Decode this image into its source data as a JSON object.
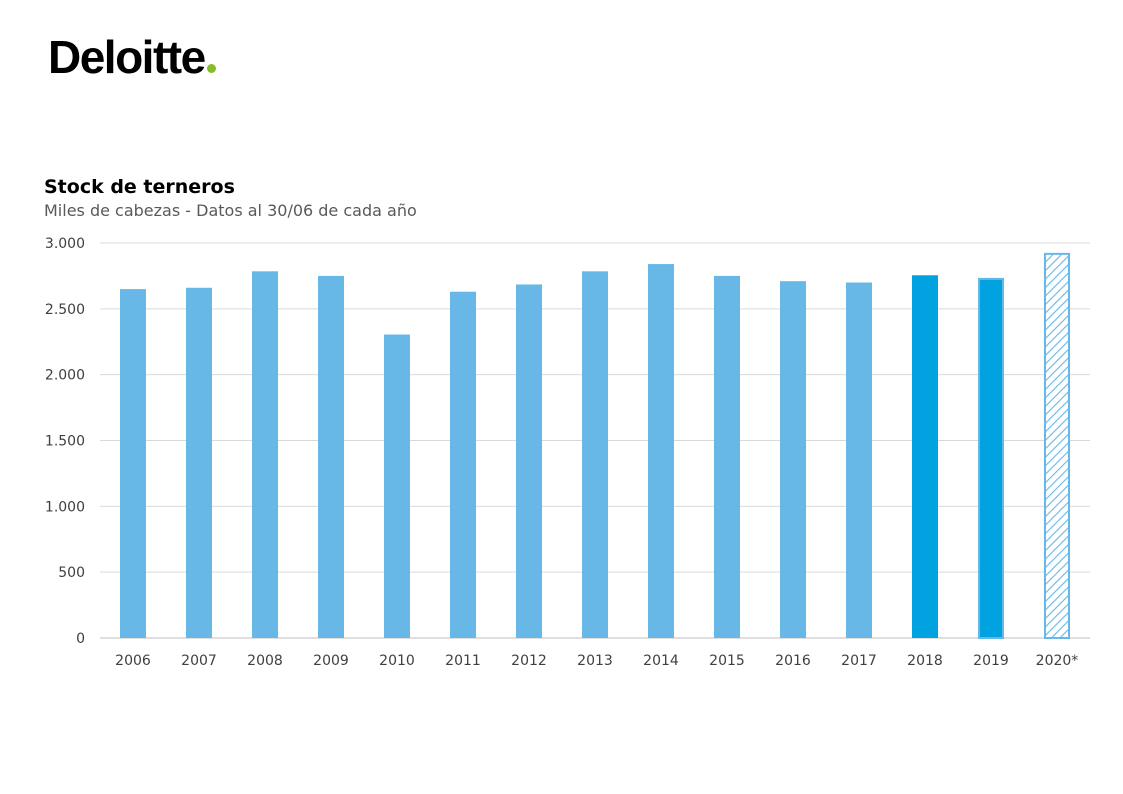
{
  "brand": {
    "logo_text": "Deloitte",
    "logo_dot_color": "#86bc25"
  },
  "chart_data": {
    "type": "bar",
    "title": "Stock de terneros",
    "subtitle": "Miles de cabezas - Datos al 30/06 de cada año",
    "xlabel": "",
    "ylabel": "",
    "ylim": [
      0,
      3000
    ],
    "yticks": [
      0,
      500,
      1000,
      1500,
      2000,
      2500,
      3000
    ],
    "ytick_labels": [
      "0",
      "500",
      "1.000",
      "1.500",
      "2.000",
      "2.500",
      "3.000"
    ],
    "grid": true,
    "categories": [
      "2006",
      "2007",
      "2008",
      "2009",
      "2010",
      "2011",
      "2012",
      "2013",
      "2014",
      "2015",
      "2016",
      "2017",
      "2018",
      "2019",
      "2020*"
    ],
    "values": [
      2650,
      2660,
      2785,
      2750,
      2305,
      2630,
      2685,
      2785,
      2840,
      2750,
      2710,
      2700,
      2755,
      2735,
      2925
    ],
    "bar_styles": [
      "light",
      "light",
      "light",
      "light",
      "light",
      "light",
      "light",
      "light",
      "light",
      "light",
      "light",
      "light",
      "dark",
      "dark-outlined",
      "hatched"
    ],
    "colors": {
      "light": "#67b8e7",
      "dark": "#00a3e0",
      "outline": "#67b8e7",
      "grid": "#d9d9d9",
      "axis": "#bfbfbf"
    }
  }
}
